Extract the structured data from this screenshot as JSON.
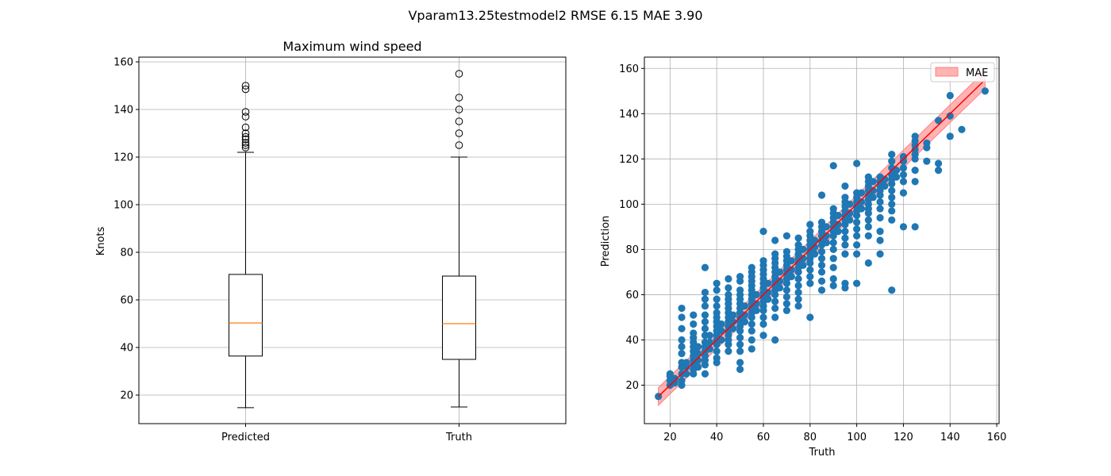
{
  "figure": {
    "suptitle": "Vparam13.25testmodel2 RMSE 6.15 MAE 3.90"
  },
  "colors": {
    "box": "#000000",
    "median": "#ff7f0e",
    "scatter": "#1f77b4",
    "fit_line": "#ff0000",
    "mae_band": "#ff8080",
    "grid": "#b0b0b0"
  },
  "chart_data": [
    {
      "type": "box",
      "title": "Maximum wind speed",
      "xlabel": "",
      "ylabel": "Knots",
      "ylim": [
        8,
        162
      ],
      "yticks": [
        20,
        40,
        60,
        80,
        100,
        120,
        140,
        160
      ],
      "grid": true,
      "categories": [
        "Predicted",
        "Truth"
      ],
      "boxes": [
        {
          "name": "Predicted",
          "whisker_low": 14.7,
          "q1": 36.4,
          "median": 50.3,
          "q3": 70.7,
          "whisker_high": 122,
          "outliers": [
            124,
            125,
            126,
            127.5,
            128.5,
            130,
            132.5,
            137,
            139,
            148.5,
            150
          ]
        },
        {
          "name": "Truth",
          "whisker_low": 15,
          "q1": 35,
          "median": 50,
          "q3": 70,
          "whisker_high": 120,
          "outliers": [
            125,
            130,
            135,
            140,
            145,
            155
          ]
        }
      ]
    },
    {
      "type": "scatter",
      "title": "",
      "xlabel": "Truth",
      "ylabel": "Prediction",
      "xlim": [
        9,
        161
      ],
      "ylim": [
        3,
        165
      ],
      "xticks": [
        20,
        40,
        60,
        80,
        100,
        120,
        140,
        160
      ],
      "yticks": [
        20,
        40,
        60,
        80,
        100,
        120,
        140,
        160
      ],
      "grid": true,
      "legend": {
        "position": "top-right",
        "entries": [
          "MAE"
        ]
      },
      "fit_line": {
        "x": [
          15,
          155
        ],
        "y": [
          15,
          155
        ]
      },
      "mae_band": 3.9,
      "points": [
        [
          15,
          15
        ],
        [
          20,
          20
        ],
        [
          20,
          22
        ],
        [
          20,
          24
        ],
        [
          20,
          25
        ],
        [
          22,
          21
        ],
        [
          22,
          23
        ],
        [
          25,
          20
        ],
        [
          25,
          22
        ],
        [
          25,
          25
        ],
        [
          25,
          28
        ],
        [
          25,
          30
        ],
        [
          25,
          34
        ],
        [
          25,
          37
        ],
        [
          25,
          40
        ],
        [
          25,
          45
        ],
        [
          25,
          50
        ],
        [
          25,
          54
        ],
        [
          27,
          25
        ],
        [
          27,
          28
        ],
        [
          27,
          30
        ],
        [
          30,
          25
        ],
        [
          30,
          27
        ],
        [
          30,
          29
        ],
        [
          30,
          31
        ],
        [
          30,
          33
        ],
        [
          30,
          35
        ],
        [
          30,
          37
        ],
        [
          30,
          39
        ],
        [
          30,
          41
        ],
        [
          30,
          43
        ],
        [
          30,
          47
        ],
        [
          30,
          51
        ],
        [
          32,
          28
        ],
        [
          32,
          31
        ],
        [
          32,
          34
        ],
        [
          32,
          37
        ],
        [
          35,
          25
        ],
        [
          35,
          29
        ],
        [
          35,
          31
        ],
        [
          35,
          33
        ],
        [
          35,
          35
        ],
        [
          35,
          37
        ],
        [
          35,
          39
        ],
        [
          35,
          42
        ],
        [
          35,
          45
        ],
        [
          35,
          48
        ],
        [
          35,
          51
        ],
        [
          35,
          55
        ],
        [
          35,
          58
        ],
        [
          35,
          61
        ],
        [
          35,
          72
        ],
        [
          37,
          36
        ],
        [
          37,
          39
        ],
        [
          37,
          42
        ],
        [
          40,
          30
        ],
        [
          40,
          32
        ],
        [
          40,
          35
        ],
        [
          40,
          38
        ],
        [
          40,
          40
        ],
        [
          40,
          42
        ],
        [
          40,
          44
        ],
        [
          40,
          46
        ],
        [
          40,
          48
        ],
        [
          40,
          50
        ],
        [
          40,
          52
        ],
        [
          40,
          55
        ],
        [
          40,
          58
        ],
        [
          40,
          62
        ],
        [
          40,
          65
        ],
        [
          42,
          40
        ],
        [
          42,
          44
        ],
        [
          42,
          47
        ],
        [
          45,
          35
        ],
        [
          45,
          38
        ],
        [
          45,
          40
        ],
        [
          45,
          42
        ],
        [
          45,
          44
        ],
        [
          45,
          46
        ],
        [
          45,
          48
        ],
        [
          45,
          50
        ],
        [
          45,
          52
        ],
        [
          45,
          54
        ],
        [
          45,
          56
        ],
        [
          45,
          58
        ],
        [
          45,
          60
        ],
        [
          45,
          63
        ],
        [
          45,
          67
        ],
        [
          47,
          45
        ],
        [
          47,
          48
        ],
        [
          47,
          51
        ],
        [
          50,
          27
        ],
        [
          50,
          30
        ],
        [
          50,
          35
        ],
        [
          50,
          38
        ],
        [
          50,
          41
        ],
        [
          50,
          44
        ],
        [
          50,
          46
        ],
        [
          50,
          48
        ],
        [
          50,
          50
        ],
        [
          50,
          52
        ],
        [
          50,
          54
        ],
        [
          50,
          56
        ],
        [
          50,
          58
        ],
        [
          50,
          60
        ],
        [
          50,
          62
        ],
        [
          50,
          66
        ],
        [
          50,
          68
        ],
        [
          52,
          48
        ],
        [
          52,
          51
        ],
        [
          52,
          55
        ],
        [
          55,
          36
        ],
        [
          55,
          40
        ],
        [
          55,
          44
        ],
        [
          55,
          47
        ],
        [
          55,
          50
        ],
        [
          55,
          52
        ],
        [
          55,
          54
        ],
        [
          55,
          56
        ],
        [
          55,
          58
        ],
        [
          55,
          60
        ],
        [
          55,
          62
        ],
        [
          55,
          64
        ],
        [
          55,
          66
        ],
        [
          55,
          68
        ],
        [
          55,
          70
        ],
        [
          55,
          72
        ],
        [
          57,
          53
        ],
        [
          57,
          56
        ],
        [
          57,
          60
        ],
        [
          60,
          42
        ],
        [
          60,
          47
        ],
        [
          60,
          50
        ],
        [
          60,
          53
        ],
        [
          60,
          55
        ],
        [
          60,
          57
        ],
        [
          60,
          59
        ],
        [
          60,
          61
        ],
        [
          60,
          63
        ],
        [
          60,
          65
        ],
        [
          60,
          67
        ],
        [
          60,
          69
        ],
        [
          60,
          71
        ],
        [
          60,
          73
        ],
        [
          60,
          75
        ],
        [
          60,
          88
        ],
        [
          62,
          58
        ],
        [
          62,
          61
        ],
        [
          62,
          65
        ],
        [
          65,
          40
        ],
        [
          65,
          50
        ],
        [
          65,
          54
        ],
        [
          65,
          57
        ],
        [
          65,
          60
        ],
        [
          65,
          62
        ],
        [
          65,
          64
        ],
        [
          65,
          66
        ],
        [
          65,
          68
        ],
        [
          65,
          70
        ],
        [
          65,
          72
        ],
        [
          65,
          74
        ],
        [
          65,
          76
        ],
        [
          65,
          78
        ],
        [
          65,
          84
        ],
        [
          67,
          63
        ],
        [
          67,
          66
        ],
        [
          67,
          70
        ],
        [
          70,
          53
        ],
        [
          70,
          56
        ],
        [
          70,
          59
        ],
        [
          70,
          62
        ],
        [
          70,
          65
        ],
        [
          70,
          67
        ],
        [
          70,
          69
        ],
        [
          70,
          71
        ],
        [
          70,
          73
        ],
        [
          70,
          75
        ],
        [
          70,
          77
        ],
        [
          70,
          79
        ],
        [
          70,
          86
        ],
        [
          72,
          68
        ],
        [
          72,
          71
        ],
        [
          72,
          75
        ],
        [
          75,
          55
        ],
        [
          75,
          58
        ],
        [
          75,
          61
        ],
        [
          75,
          64
        ],
        [
          75,
          67
        ],
        [
          75,
          70
        ],
        [
          75,
          72
        ],
        [
          75,
          74
        ],
        [
          75,
          76
        ],
        [
          75,
          78
        ],
        [
          75,
          80
        ],
        [
          75,
          82
        ],
        [
          75,
          85
        ],
        [
          77,
          73
        ],
        [
          77,
          76
        ],
        [
          77,
          80
        ],
        [
          80,
          50
        ],
        [
          80,
          65
        ],
        [
          80,
          68
        ],
        [
          80,
          71
        ],
        [
          80,
          74
        ],
        [
          80,
          76
        ],
        [
          80,
          78
        ],
        [
          80,
          80
        ],
        [
          80,
          82
        ],
        [
          80,
          84
        ],
        [
          80,
          86
        ],
        [
          80,
          88
        ],
        [
          80,
          91
        ],
        [
          82,
          78
        ],
        [
          82,
          81
        ],
        [
          82,
          84
        ],
        [
          85,
          62
        ],
        [
          85,
          66
        ],
        [
          85,
          70
        ],
        [
          85,
          73
        ],
        [
          85,
          76
        ],
        [
          85,
          79
        ],
        [
          85,
          82
        ],
        [
          85,
          84
        ],
        [
          85,
          86
        ],
        [
          85,
          88
        ],
        [
          85,
          90
        ],
        [
          85,
          92
        ],
        [
          85,
          104
        ],
        [
          87,
          83
        ],
        [
          87,
          86
        ],
        [
          87,
          90
        ],
        [
          90,
          64
        ],
        [
          90,
          67
        ],
        [
          90,
          72
        ],
        [
          90,
          76
        ],
        [
          90,
          80
        ],
        [
          90,
          83
        ],
        [
          90,
          86
        ],
        [
          90,
          88
        ],
        [
          90,
          90
        ],
        [
          90,
          92
        ],
        [
          90,
          94
        ],
        [
          90,
          96
        ],
        [
          90,
          98
        ],
        [
          90,
          117
        ],
        [
          92,
          88
        ],
        [
          92,
          91
        ],
        [
          92,
          95
        ],
        [
          95,
          63
        ],
        [
          95,
          65
        ],
        [
          95,
          78
        ],
        [
          95,
          82
        ],
        [
          95,
          85
        ],
        [
          95,
          88
        ],
        [
          95,
          91
        ],
        [
          95,
          93
        ],
        [
          95,
          95
        ],
        [
          95,
          97
        ],
        [
          95,
          99
        ],
        [
          95,
          101
        ],
        [
          95,
          103
        ],
        [
          95,
          108
        ],
        [
          97,
          93
        ],
        [
          97,
          96
        ],
        [
          97,
          100
        ],
        [
          100,
          65
        ],
        [
          100,
          78
        ],
        [
          100,
          82
        ],
        [
          100,
          86
        ],
        [
          100,
          89
        ],
        [
          100,
          92
        ],
        [
          100,
          95
        ],
        [
          100,
          97
        ],
        [
          100,
          99
        ],
        [
          100,
          101
        ],
        [
          100,
          103
        ],
        [
          100,
          105
        ],
        [
          100,
          118
        ],
        [
          102,
          98
        ],
        [
          102,
          101
        ],
        [
          102,
          105
        ],
        [
          105,
          74
        ],
        [
          105,
          86
        ],
        [
          105,
          90
        ],
        [
          105,
          93
        ],
        [
          105,
          96
        ],
        [
          105,
          98
        ],
        [
          105,
          100
        ],
        [
          105,
          102
        ],
        [
          105,
          104
        ],
        [
          105,
          106
        ],
        [
          105,
          108
        ],
        [
          105,
          110
        ],
        [
          105,
          112
        ],
        [
          107,
          103
        ],
        [
          107,
          106
        ],
        [
          107,
          110
        ],
        [
          110,
          78
        ],
        [
          110,
          84
        ],
        [
          110,
          88
        ],
        [
          110,
          94
        ],
        [
          110,
          98
        ],
        [
          110,
          101
        ],
        [
          110,
          104
        ],
        [
          110,
          106
        ],
        [
          110,
          108
        ],
        [
          110,
          110
        ],
        [
          110,
          112
        ],
        [
          112,
          108
        ],
        [
          112,
          111
        ],
        [
          115,
          62
        ],
        [
          115,
          93
        ],
        [
          115,
          97
        ],
        [
          115,
          100
        ],
        [
          115,
          103
        ],
        [
          115,
          106
        ],
        [
          115,
          109
        ],
        [
          115,
          111
        ],
        [
          115,
          113
        ],
        [
          115,
          116
        ],
        [
          115,
          119
        ],
        [
          115,
          122
        ],
        [
          117,
          112
        ],
        [
          117,
          115
        ],
        [
          120,
          90
        ],
        [
          120,
          105
        ],
        [
          120,
          110
        ],
        [
          120,
          113
        ],
        [
          120,
          116
        ],
        [
          120,
          119
        ],
        [
          120,
          121
        ],
        [
          125,
          90
        ],
        [
          125,
          110
        ],
        [
          125,
          115
        ],
        [
          125,
          120
        ],
        [
          125,
          122
        ],
        [
          125,
          124
        ],
        [
          125,
          126
        ],
        [
          125,
          128
        ],
        [
          125,
          130
        ],
        [
          130,
          119
        ],
        [
          130,
          125
        ],
        [
          130,
          127
        ],
        [
          135,
          115
        ],
        [
          135,
          118
        ],
        [
          135,
          137
        ],
        [
          140,
          130
        ],
        [
          140,
          139
        ],
        [
          140,
          148
        ],
        [
          145,
          133
        ],
        [
          155,
          150
        ]
      ]
    }
  ]
}
